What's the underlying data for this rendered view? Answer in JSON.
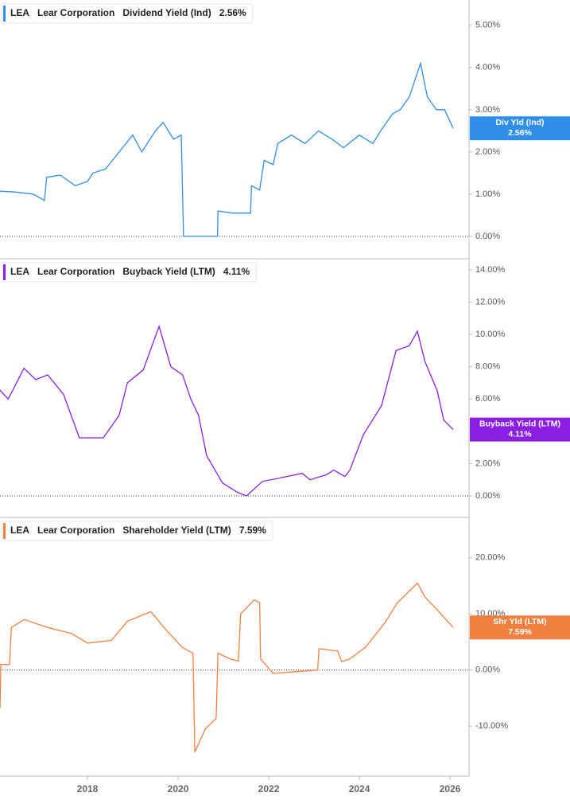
{
  "chart_data": [
    {
      "type": "line",
      "ticker": "LEA",
      "company": "Lear Corporation",
      "name": "Dividend Yield (Ind)",
      "badge_label": "Div Yld (Ind)",
      "current_label": "2.56%",
      "color": "#2f8ee6",
      "xlim": [
        2016.07,
        2026.42
      ],
      "ylim": [
        -0.53,
        5.6
      ],
      "yticks": [
        {
          "value": 0,
          "label": "0.00%"
        },
        {
          "value": 1,
          "label": "1.00%"
        },
        {
          "value": 2,
          "label": "2.00%"
        },
        {
          "value": 3,
          "label": "3.00%"
        },
        {
          "value": 4,
          "label": "4.00%"
        },
        {
          "value": 5,
          "label": "5.00%"
        }
      ],
      "x": [
        2016.07,
        2016.4,
        2016.8,
        2017.05,
        2017.1,
        2017.4,
        2017.73,
        2018.0,
        2018.12,
        2018.4,
        2018.7,
        2019.0,
        2019.2,
        2019.5,
        2019.67,
        2019.9,
        2020.07,
        2020.12,
        2020.5,
        2020.87,
        2020.88,
        2021.2,
        2021.6,
        2021.62,
        2021.8,
        2021.9,
        2022.1,
        2022.2,
        2022.5,
        2022.8,
        2023.1,
        2023.4,
        2023.65,
        2024.0,
        2024.3,
        2024.47,
        2024.73,
        2024.9,
        2025.1,
        2025.35,
        2025.5,
        2025.7,
        2025.88,
        2026.07
      ],
      "values": [
        1.07,
        1.05,
        1.0,
        0.85,
        1.4,
        1.45,
        1.2,
        1.3,
        1.5,
        1.6,
        2.0,
        2.4,
        2.0,
        2.5,
        2.7,
        2.3,
        2.4,
        0,
        0,
        0,
        0.6,
        0.55,
        0.55,
        1.2,
        1.1,
        1.8,
        1.7,
        2.2,
        2.4,
        2.2,
        2.5,
        2.3,
        2.1,
        2.4,
        2.2,
        2.5,
        2.9,
        3.0,
        3.3,
        4.1,
        3.3,
        3.0,
        3.0,
        2.56
      ]
    },
    {
      "type": "line",
      "ticker": "LEA",
      "company": "Lear Corporation",
      "name": "Buyback Yield (LTM)",
      "badge_label": "Buyback Yield (LTM)",
      "current_label": "4.11%",
      "color": "#8a1fe0",
      "xlim": [
        2016.07,
        2026.42
      ],
      "ylim": [
        -1.33,
        14.69
      ],
      "yticks": [
        {
          "value": 0,
          "label": "0.00%"
        },
        {
          "value": 2,
          "label": "2.00%"
        },
        {
          "value": 4,
          "label": "4.00%"
        },
        {
          "value": 6,
          "label": "6.00%"
        },
        {
          "value": 8,
          "label": "8.00%"
        },
        {
          "value": 10,
          "label": "10.00%"
        },
        {
          "value": 12,
          "label": "12.00%"
        },
        {
          "value": 14,
          "label": "14.00%"
        }
      ],
      "x": [
        2016.07,
        2016.25,
        2016.6,
        2016.86,
        2017.12,
        2017.47,
        2017.82,
        2018.35,
        2018.7,
        2018.88,
        2019.23,
        2019.58,
        2019.84,
        2020.1,
        2020.28,
        2020.45,
        2020.63,
        2020.98,
        2021.33,
        2021.51,
        2021.86,
        2022.39,
        2022.74,
        2022.91,
        2023.26,
        2023.44,
        2023.68,
        2023.79,
        2024.09,
        2024.49,
        2024.81,
        2025.1,
        2025.28,
        2025.45,
        2025.72,
        2025.86,
        2026.07
      ],
      "values": [
        6.55,
        6.0,
        7.9,
        7.2,
        7.5,
        6.3,
        3.6,
        3.6,
        5.0,
        7.0,
        7.8,
        10.5,
        8.0,
        7.5,
        6.0,
        5.0,
        2.5,
        0.8,
        0.2,
        0,
        0.9,
        1.2,
        1.4,
        1.0,
        1.3,
        1.6,
        1.2,
        1.6,
        3.8,
        5.6,
        9.0,
        9.3,
        10.2,
        8.3,
        6.5,
        4.7,
        4.11
      ]
    },
    {
      "type": "line",
      "ticker": "LEA",
      "company": "Lear Corporation",
      "name": "Shareholder Yield (LTM)",
      "badge_label": "Shr Yld (LTM)",
      "current_label": "7.59%",
      "color": "#f08040",
      "xlim": [
        2016.07,
        2026.42
      ],
      "ylim": [
        -18.9,
        27.2
      ],
      "yticks": [
        {
          "value": -10,
          "label": "-10.00%"
        },
        {
          "value": 0,
          "label": "0.00%"
        },
        {
          "value": 10,
          "label": "10.00%"
        },
        {
          "value": 20,
          "label": "20.00%"
        }
      ],
      "xticks": [
        2018,
        2020,
        2022,
        2024,
        2026
      ],
      "x": [
        2016.07,
        2016.09,
        2016.28,
        2016.32,
        2016.6,
        2017.12,
        2017.65,
        2018.0,
        2018.53,
        2018.88,
        2019.4,
        2019.75,
        2020.1,
        2020.33,
        2020.37,
        2020.6,
        2020.84,
        2020.88,
        2021.15,
        2021.33,
        2021.38,
        2021.68,
        2021.8,
        2021.82,
        2022.1,
        2022.73,
        2023.08,
        2023.11,
        2023.52,
        2023.61,
        2023.79,
        2024.14,
        2024.58,
        2024.84,
        2025.28,
        2025.45,
        2025.72,
        2026.07
      ],
      "values": [
        -6.8,
        1.0,
        1.0,
        7.6,
        9.0,
        7.6,
        6.5,
        4.8,
        5.3,
        8.7,
        10.4,
        7.0,
        4.0,
        3.0,
        -14.6,
        -10.5,
        -8.6,
        3.0,
        2.0,
        1.6,
        10.0,
        12.5,
        12.0,
        2.0,
        -0.6,
        -0.2,
        0,
        3.8,
        3.4,
        1.5,
        2.0,
        4.1,
        8.6,
        12.0,
        15.5,
        13.0,
        10.7,
        7.59
      ]
    }
  ]
}
